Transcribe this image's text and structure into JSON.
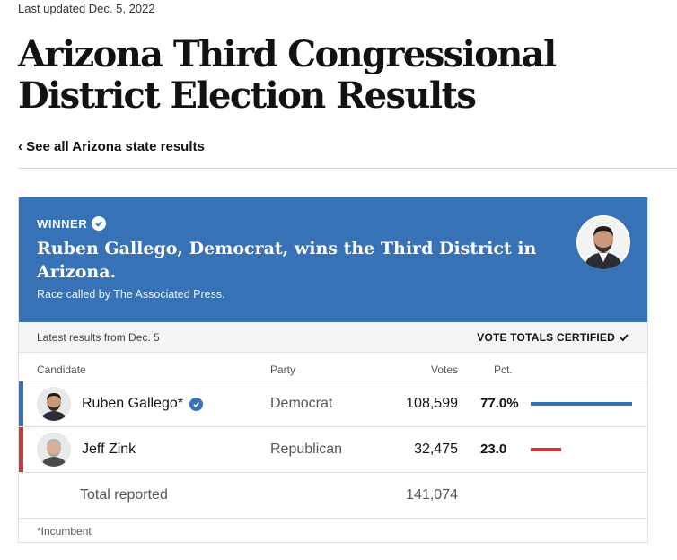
{
  "updated": "Last updated Dec. 5, 2022",
  "headline": "Arizona Third Congressional District Election Results",
  "back_link": "‹ See all Arizona state results",
  "banner": {
    "label": "WINNER",
    "headline": "Ruben Gallego, Democrat, wins the Third District in Arizona.",
    "subtext": "Race called by The Associated Press.",
    "color": "#3672b5"
  },
  "meta": {
    "latest": "Latest results from Dec. 5",
    "certified": "VOTE TOTALS CERTIFIED"
  },
  "columns": {
    "candidate": "Candidate",
    "party": "Party",
    "votes": "Votes",
    "pct": "Pct."
  },
  "candidates": [
    {
      "name": "Ruben Gallego*",
      "party": "Democrat",
      "votes": "108,599",
      "pct": "77.0%",
      "pct_value": 77.0,
      "color": "#3672b5",
      "winner": true
    },
    {
      "name": "Jeff Zink",
      "party": "Republican",
      "votes": "32,475",
      "pct": "23.0",
      "pct_value": 23.0,
      "color": "#c43b3b",
      "winner": false
    }
  ],
  "total": {
    "label": "Total reported",
    "votes": "141,074"
  },
  "footnote": "*Incumbent"
}
